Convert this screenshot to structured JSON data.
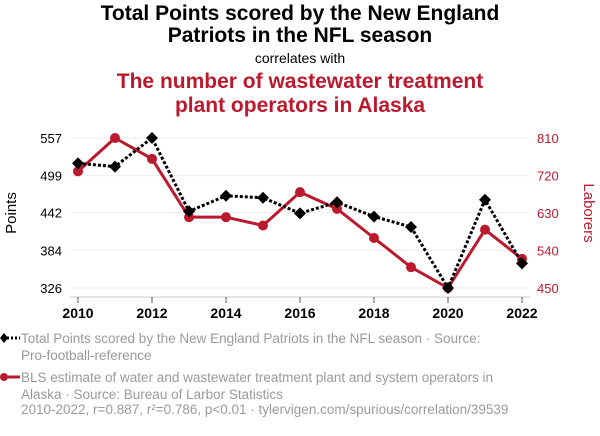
{
  "header": {
    "title": "Total Points scored by the New England Patriots in the NFL season",
    "title_line1": "Total Points scored by the New England",
    "title_line2": "Patriots in the NFL season",
    "connector": "correlates with",
    "title2_line1": "The number of wastewater treatment",
    "title2_line2": "plant operators in Alaska"
  },
  "colors": {
    "series1": "#000000",
    "series2": "#bb1a2e",
    "muted_text": "#9a9a9a"
  },
  "chart_data": {
    "type": "line",
    "title": "Total Points scored by the New England Patriots in the NFL season correlates with The number of wastewater treatment plant operators in Alaska",
    "x": [
      2010,
      2011,
      2012,
      2013,
      2014,
      2015,
      2016,
      2017,
      2018,
      2019,
      2020,
      2021,
      2022
    ],
    "x_ticks": [
      "2010",
      "2012",
      "2014",
      "2016",
      "2018",
      "2020",
      "2022"
    ],
    "xlim": [
      2010,
      2022
    ],
    "y_left": {
      "label": "Points",
      "ticks": [
        "557",
        "499",
        "442",
        "384",
        "326"
      ],
      "lim": [
        326,
        557
      ]
    },
    "y_right": {
      "label": "Laborers",
      "ticks": [
        "810",
        "720",
        "630",
        "540",
        "450"
      ],
      "lim": [
        450,
        810
      ]
    },
    "grid": true,
    "series": [
      {
        "name": "Total Points scored by the New England Patriots in the NFL season",
        "axis": "left",
        "style": "dotted",
        "marker": "diamond",
        "values": [
          518,
          513,
          557,
          444,
          468,
          465,
          441,
          458,
          436,
          420,
          326,
          462,
          364
        ]
      },
      {
        "name": "BLS estimate of water and wastewater treatment plant and system operators in Alaska",
        "axis": "right",
        "style": "solid",
        "marker": "circle",
        "values": [
          730,
          810,
          760,
          620,
          620,
          600,
          680,
          640,
          570,
          500,
          450,
          590,
          520
        ]
      }
    ]
  },
  "legend": {
    "items": [
      {
        "line1": "Total Points scored by the New England Patriots in the NFL season · Source:",
        "line2": "Pro-football-reference"
      },
      {
        "line1": "BLS estimate of water and wastewater treatment plant and system operators in",
        "line2": "Alaska · Source: Bureau of Larbor Statistics"
      }
    ]
  },
  "footer": {
    "stats": "2010-2022, r=0.887, r²=0.786, p<0.01 · tylervigen.com/spurious/correlation/39539"
  }
}
